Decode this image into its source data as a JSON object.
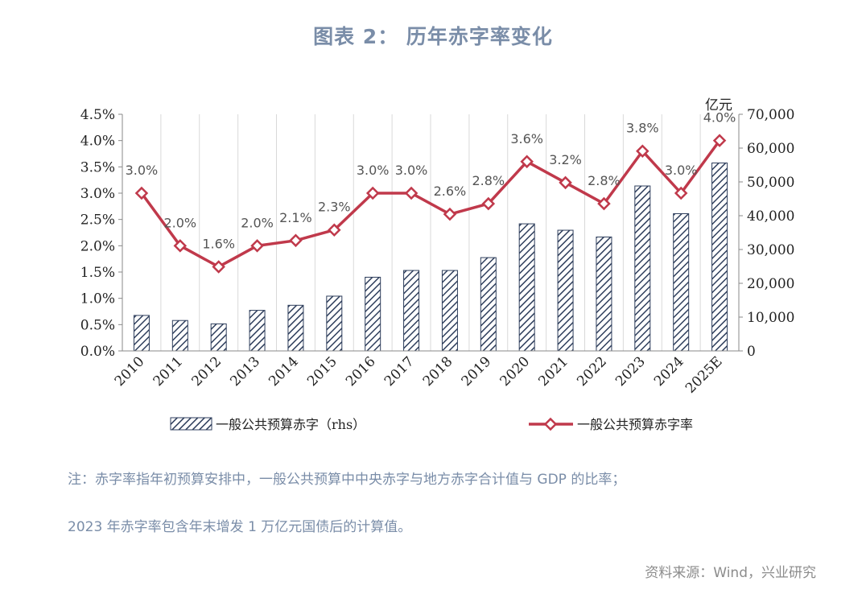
{
  "title": "图表 2： 历年赤字率变化",
  "notes": {
    "line1": "注：赤字率指年初预算安排中，一般公共预算中中央赤字与地方赤字合计值与  GDP  的比率；",
    "line2": "2023  年赤字率包含年末增发  1  万亿元国债后的计算值。"
  },
  "source": "资料来源：Wind，兴业研究",
  "colors": {
    "line": "#c0394b",
    "bar_stroke": "#2e3e5c",
    "grid": "#d9d9d9",
    "text_accent": "#7a8da8"
  },
  "chart_data": {
    "type": "bar+line",
    "categories": [
      "2010",
      "2011",
      "2012",
      "2013",
      "2014",
      "2015",
      "2016",
      "2017",
      "2018",
      "2019",
      "2020",
      "2021",
      "2022",
      "2023",
      "2024",
      "2025E"
    ],
    "series": [
      {
        "name": "一般公共预算赤字（rhs）",
        "type": "bar",
        "axis": "right",
        "values": [
          10500,
          9000,
          8000,
          12000,
          13500,
          16200,
          21800,
          23800,
          23800,
          27600,
          37600,
          35700,
          33700,
          48800,
          40600,
          55600
        ]
      },
      {
        "name": "一般公共预算赤字率",
        "type": "line",
        "axis": "left",
        "values": [
          3.0,
          2.0,
          1.6,
          2.0,
          2.1,
          2.3,
          3.0,
          3.0,
          2.6,
          2.8,
          3.6,
          3.2,
          2.8,
          3.8,
          3.0,
          4.0
        ],
        "labels": [
          "3.0%",
          "2.0%",
          "1.6%",
          "2.0%",
          "2.1%",
          "2.3%",
          "3.0%",
          "3.0%",
          "2.6%",
          "2.8%",
          "3.6%",
          "3.2%",
          "2.8%",
          "3.8%",
          "3.0%",
          "4.0%"
        ]
      }
    ],
    "y_left": {
      "range": [
        0,
        4.5
      ],
      "ticks": [
        "0.0%",
        "0.5%",
        "1.0%",
        "1.5%",
        "2.0%",
        "2.5%",
        "3.0%",
        "3.5%",
        "4.0%",
        "4.5%"
      ]
    },
    "y_right": {
      "range": [
        0,
        70000
      ],
      "ticks": [
        "0",
        "10,000",
        "20,000",
        "30,000",
        "40,000",
        "50,000",
        "60,000",
        "70,000"
      ],
      "unit": "亿元"
    },
    "grid": "vertical",
    "legend": "bottom"
  }
}
